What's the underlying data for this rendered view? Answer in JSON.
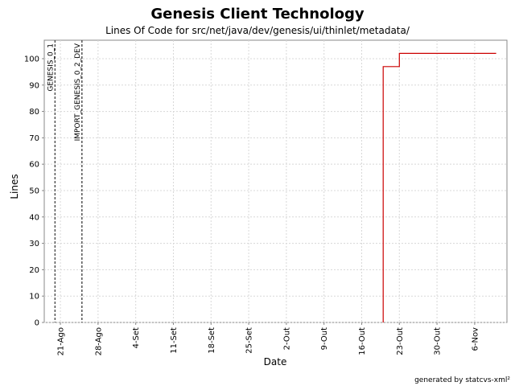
{
  "chart_data": {
    "type": "line",
    "title": "Genesis Client Technology",
    "subtitle": "Lines Of Code for src/net/java/dev/genesis/ui/thinlet/metadata/",
    "xlabel": "Date",
    "ylabel": "Lines",
    "x_type": "date",
    "xlim": [
      "2005-08-18",
      "2005-11-12"
    ],
    "ylim": [
      0,
      107
    ],
    "grid": true,
    "step": true,
    "y_ticks": [
      0,
      10,
      20,
      30,
      40,
      50,
      60,
      70,
      80,
      90,
      100
    ],
    "x_ticks": [
      {
        "date": "2005-08-21",
        "label": "21-Ago"
      },
      {
        "date": "2005-08-28",
        "label": "28-Ago"
      },
      {
        "date": "2005-09-04",
        "label": "4-Set"
      },
      {
        "date": "2005-09-11",
        "label": "11-Set"
      },
      {
        "date": "2005-09-18",
        "label": "18-Set"
      },
      {
        "date": "2005-09-25",
        "label": "25-Set"
      },
      {
        "date": "2005-10-02",
        "label": "2-Out"
      },
      {
        "date": "2005-10-09",
        "label": "9-Out"
      },
      {
        "date": "2005-10-16",
        "label": "16-Out"
      },
      {
        "date": "2005-10-23",
        "label": "23-Out"
      },
      {
        "date": "2005-10-30",
        "label": "30-Out"
      },
      {
        "date": "2005-11-06",
        "label": "6-Nov"
      }
    ],
    "markers": [
      {
        "date": "2005-08-20",
        "label": "GENESIS_0_1"
      },
      {
        "date": "2005-08-25",
        "label": "IMPORT_GENESIS_0_2_DEV"
      }
    ],
    "series": [
      {
        "color": "#cc0000",
        "points": [
          {
            "x": "2005-10-20",
            "y": 0
          },
          {
            "x": "2005-10-20",
            "y": 97
          },
          {
            "x": "2005-10-23",
            "y": 97
          },
          {
            "x": "2005-10-23",
            "y": 102
          },
          {
            "x": "2005-11-10",
            "y": 102
          }
        ]
      }
    ]
  },
  "footer": "generated by statcvs-xml²"
}
